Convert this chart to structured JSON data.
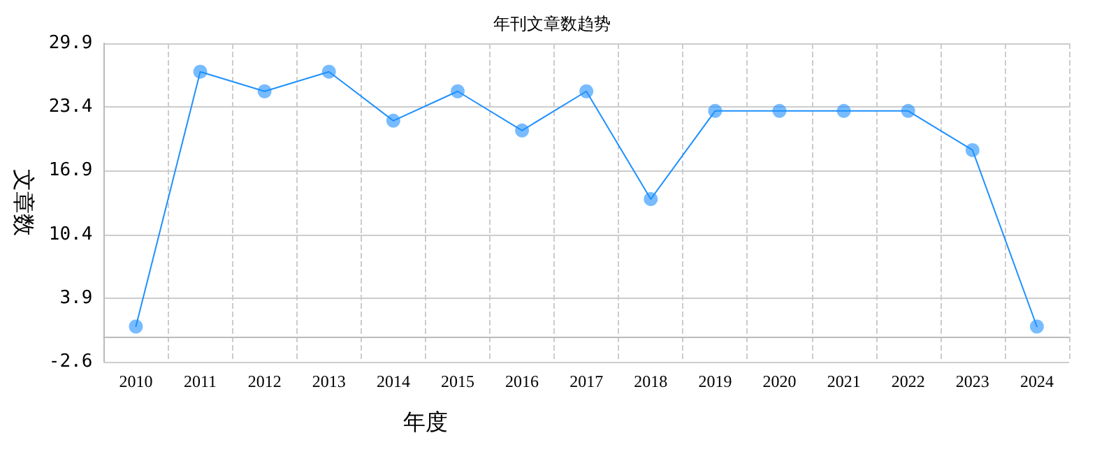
{
  "chart_data": {
    "type": "line",
    "title": "年刊文章数趋势",
    "xlabel": "年度",
    "ylabel": "文章数",
    "categories": [
      "2010",
      "2011",
      "2012",
      "2013",
      "2014",
      "2015",
      "2016",
      "2017",
      "2018",
      "2019",
      "2020",
      "2021",
      "2022",
      "2023",
      "2024"
    ],
    "series": [
      {
        "color": "#1e90ff",
        "values": [
          1,
          27,
          25,
          27,
          22,
          25,
          21,
          25,
          14,
          23,
          23,
          23,
          23,
          19,
          1
        ]
      }
    ],
    "ylim": [
      -2.6,
      29.9
    ],
    "yticks": [
      -2.6,
      3.9,
      10.4,
      16.9,
      23.4,
      29.9
    ],
    "grid": true,
    "marker": "circle",
    "line_style": "solid"
  }
}
